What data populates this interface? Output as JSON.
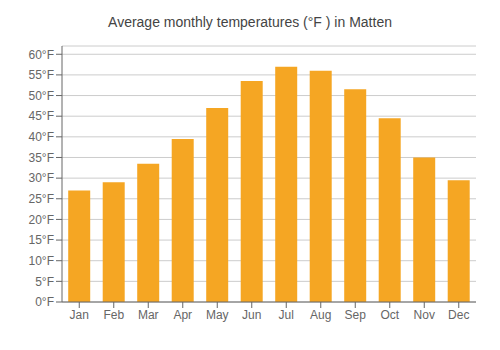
{
  "chart_data": {
    "type": "bar",
    "title": "Average monthly temperatures (°F ) in Matten",
    "categories": [
      "Jan",
      "Feb",
      "Mar",
      "Apr",
      "May",
      "Jun",
      "Jul",
      "Aug",
      "Sep",
      "Oct",
      "Nov",
      "Dec"
    ],
    "values": [
      27,
      29,
      33.5,
      39.5,
      47,
      53.5,
      57,
      56,
      51.5,
      44.5,
      35,
      29.5
    ],
    "color": "#F5A623",
    "ylim": [
      0,
      62
    ],
    "yticks": [
      {
        "value": 0,
        "label": "0°F"
      },
      {
        "value": 5,
        "label": "5°F"
      },
      {
        "value": 10,
        "label": "10°F"
      },
      {
        "value": 15,
        "label": "15°F"
      },
      {
        "value": 20,
        "label": "20°F"
      },
      {
        "value": 25,
        "label": "25°F"
      },
      {
        "value": 30,
        "label": "30°F"
      },
      {
        "value": 35,
        "label": "35°F"
      },
      {
        "value": 40,
        "label": "40°F"
      },
      {
        "value": 45,
        "label": "45°F"
      },
      {
        "value": 50,
        "label": "50°F"
      },
      {
        "value": 55,
        "label": "55°F"
      },
      {
        "value": 60,
        "label": "60°F"
      }
    ],
    "grid": true
  }
}
